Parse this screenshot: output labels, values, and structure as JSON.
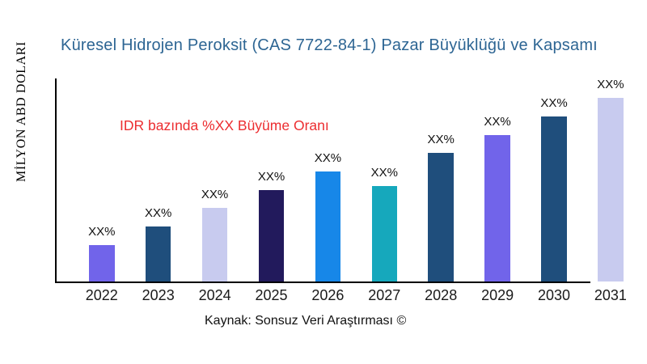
{
  "chart_data": {
    "type": "bar",
    "title": "Küresel Hidrojen Peroksit (CAS 7722-84-1) Pazar Büyüklüğü ve Kapsamı",
    "title_color": "#2d6593",
    "ylabel": "MİLYON ABD DOLARI",
    "xlabel": "",
    "categories": [
      "2022",
      "2023",
      "2024",
      "2025",
      "2026",
      "2027",
      "2028",
      "2029",
      "2030",
      "2031"
    ],
    "bar_value_labels": [
      "XX%",
      "XX%",
      "XX%",
      "XX%",
      "XX%",
      "XX%",
      "XX%",
      "XX%",
      "XX%",
      "XX%"
    ],
    "values_relative_height_pct": [
      18,
      27,
      36,
      45,
      54,
      47,
      63,
      72,
      81,
      90
    ],
    "bar_colors": [
      "#7164ea",
      "#1f4e7c",
      "#c8cbef",
      "#221a5c",
      "#1787e8",
      "#16a8bc",
      "#1f4e7c",
      "#7164ea",
      "#1f4e7c",
      "#c8cbef"
    ],
    "annotation": {
      "text": "IDR bazında %XX Büyüme Oranı",
      "color": "#ec2d30"
    },
    "source_note": "Kaynak: Sonsuz Veri Araştırması ©",
    "axis_color": "#000000",
    "label_color": "#111111",
    "background": "#ffffff",
    "grid": false,
    "legend": false
  }
}
